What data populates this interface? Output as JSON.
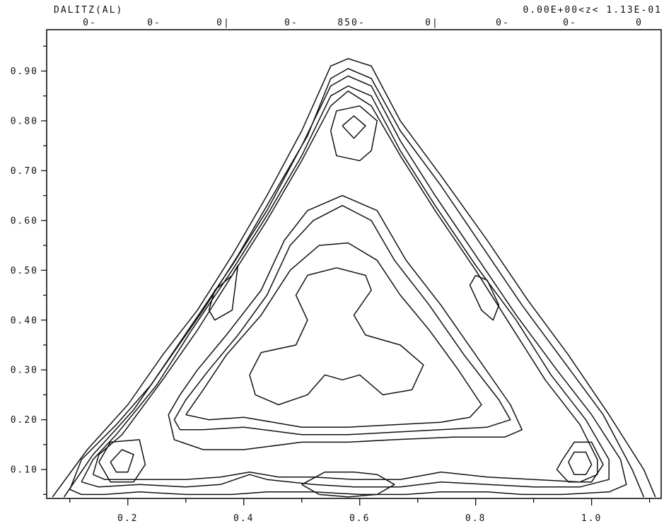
{
  "chart_data": {
    "type": "contour",
    "title": "DALITZ(AL)",
    "range_label": "0.00E+00<z< 1.13E-01",
    "top_labels": [
      "0-",
      "0-",
      "0|",
      "0-",
      "850-",
      "0|",
      "0-",
      "0-",
      "0"
    ],
    "x_ticks": [
      "0.2",
      "0.4",
      "0.6",
      "0.8",
      "1.0"
    ],
    "y_ticks": [
      "0.90",
      "0.80",
      "0.70",
      "0.60",
      "0.50",
      "0.40",
      "0.30",
      "0.20",
      "0.10"
    ],
    "xlim": [
      0.06,
      1.12
    ],
    "ylim": [
      0.042,
      0.983
    ],
    "contours": [
      {
        "level": 1,
        "points": [
          [
            0.07,
            0.045
          ],
          [
            0.13,
            0.14
          ],
          [
            0.2,
            0.23
          ],
          [
            0.26,
            0.33
          ],
          [
            0.32,
            0.42
          ],
          [
            0.38,
            0.53
          ],
          [
            0.44,
            0.65
          ],
          [
            0.5,
            0.78
          ],
          [
            0.55,
            0.91
          ],
          [
            0.58,
            0.925
          ],
          [
            0.62,
            0.91
          ],
          [
            0.67,
            0.8
          ],
          [
            0.74,
            0.69
          ],
          [
            0.82,
            0.56
          ],
          [
            0.89,
            0.44
          ],
          [
            0.96,
            0.33
          ],
          [
            1.03,
            0.21
          ],
          [
            1.09,
            0.1
          ],
          [
            1.11,
            0.045
          ]
        ]
      },
      {
        "level": 2,
        "points": [
          [
            0.09,
            0.045
          ],
          [
            0.14,
            0.13
          ],
          [
            0.21,
            0.22
          ],
          [
            0.27,
            0.32
          ],
          [
            0.33,
            0.42
          ],
          [
            0.39,
            0.53
          ],
          [
            0.45,
            0.65
          ],
          [
            0.51,
            0.77
          ],
          [
            0.55,
            0.885
          ],
          [
            0.58,
            0.905
          ],
          [
            0.62,
            0.885
          ],
          [
            0.67,
            0.78
          ],
          [
            0.74,
            0.67
          ],
          [
            0.81,
            0.55
          ],
          [
            0.88,
            0.43
          ],
          [
            0.95,
            0.32
          ],
          [
            1.02,
            0.21
          ],
          [
            1.07,
            0.1
          ],
          [
            1.09,
            0.045
          ]
        ]
      },
      {
        "level": 3,
        "points": [
          [
            0.1,
            0.06
          ],
          [
            0.12,
            0.12
          ],
          [
            0.18,
            0.19
          ],
          [
            0.24,
            0.27
          ],
          [
            0.31,
            0.39
          ],
          [
            0.38,
            0.51
          ],
          [
            0.44,
            0.62
          ],
          [
            0.5,
            0.75
          ],
          [
            0.55,
            0.87
          ],
          [
            0.58,
            0.89
          ],
          [
            0.62,
            0.87
          ],
          [
            0.67,
            0.76
          ],
          [
            0.73,
            0.65
          ],
          [
            0.8,
            0.53
          ],
          [
            0.87,
            0.41
          ],
          [
            0.94,
            0.3
          ],
          [
            1.0,
            0.21
          ],
          [
            1.05,
            0.12
          ],
          [
            1.06,
            0.07
          ],
          [
            1.03,
            0.055
          ],
          [
            0.95,
            0.05
          ],
          [
            0.88,
            0.05
          ],
          [
            0.82,
            0.055
          ],
          [
            0.74,
            0.055
          ],
          [
            0.68,
            0.05
          ],
          [
            0.6,
            0.05
          ],
          [
            0.52,
            0.055
          ],
          [
            0.44,
            0.055
          ],
          [
            0.38,
            0.05
          ],
          [
            0.3,
            0.05
          ],
          [
            0.22,
            0.055
          ],
          [
            0.16,
            0.05
          ],
          [
            0.12,
            0.05
          ],
          [
            0.1,
            0.06
          ]
        ]
      },
      {
        "level": 4,
        "points": [
          [
            0.12,
            0.075
          ],
          [
            0.14,
            0.12
          ],
          [
            0.18,
            0.17
          ],
          [
            0.25,
            0.27
          ],
          [
            0.31,
            0.38
          ],
          [
            0.38,
            0.5
          ],
          [
            0.44,
            0.61
          ],
          [
            0.5,
            0.73
          ],
          [
            0.55,
            0.85
          ],
          [
            0.58,
            0.87
          ],
          [
            0.62,
            0.85
          ],
          [
            0.67,
            0.74
          ],
          [
            0.73,
            0.63
          ],
          [
            0.8,
            0.51
          ],
          [
            0.87,
            0.4
          ],
          [
            0.93,
            0.29
          ],
          [
            0.99,
            0.2
          ],
          [
            1.03,
            0.12
          ],
          [
            1.03,
            0.08
          ],
          [
            0.98,
            0.065
          ],
          [
            0.9,
            0.065
          ],
          [
            0.82,
            0.07
          ],
          [
            0.74,
            0.075
          ],
          [
            0.67,
            0.065
          ],
          [
            0.59,
            0.065
          ],
          [
            0.52,
            0.07
          ],
          [
            0.44,
            0.08
          ],
          [
            0.41,
            0.09
          ],
          [
            0.36,
            0.07
          ],
          [
            0.3,
            0.065
          ],
          [
            0.22,
            0.07
          ],
          [
            0.15,
            0.065
          ],
          [
            0.12,
            0.075
          ]
        ]
      },
      {
        "level": 5,
        "points": [
          [
            0.14,
            0.09
          ],
          [
            0.15,
            0.13
          ],
          [
            0.19,
            0.17
          ],
          [
            0.26,
            0.28
          ],
          [
            0.32,
            0.38
          ],
          [
            0.38,
            0.49
          ],
          [
            0.44,
            0.6
          ],
          [
            0.5,
            0.72
          ],
          [
            0.55,
            0.83
          ],
          [
            0.58,
            0.86
          ],
          [
            0.62,
            0.83
          ],
          [
            0.67,
            0.73
          ],
          [
            0.73,
            0.62
          ],
          [
            0.8,
            0.5
          ],
          [
            0.86,
            0.39
          ],
          [
            0.92,
            0.28
          ],
          [
            0.98,
            0.19
          ],
          [
            1.01,
            0.12
          ],
          [
            1.01,
            0.09
          ],
          [
            0.98,
            0.075
          ],
          [
            0.9,
            0.08
          ],
          [
            0.82,
            0.085
          ],
          [
            0.74,
            0.095
          ],
          [
            0.67,
            0.08
          ],
          [
            0.59,
            0.08
          ],
          [
            0.52,
            0.085
          ],
          [
            0.46,
            0.085
          ],
          [
            0.41,
            0.095
          ],
          [
            0.36,
            0.085
          ],
          [
            0.3,
            0.08
          ],
          [
            0.22,
            0.08
          ],
          [
            0.16,
            0.08
          ],
          [
            0.14,
            0.09
          ]
        ]
      },
      {
        "level": 6,
        "points": [
          [
            0.15,
            0.115
          ],
          [
            0.17,
            0.155
          ],
          [
            0.22,
            0.16
          ],
          [
            0.23,
            0.11
          ],
          [
            0.21,
            0.075
          ],
          [
            0.17,
            0.075
          ],
          [
            0.15,
            0.115
          ]
        ]
      },
      {
        "level": 7,
        "points": [
          [
            0.17,
            0.115
          ],
          [
            0.19,
            0.14
          ],
          [
            0.21,
            0.13
          ],
          [
            0.2,
            0.095
          ],
          [
            0.18,
            0.095
          ],
          [
            0.17,
            0.115
          ]
        ]
      },
      {
        "level": 6,
        "points": [
          [
            0.95,
            0.12
          ],
          [
            0.97,
            0.155
          ],
          [
            1.0,
            0.155
          ],
          [
            1.02,
            0.11
          ],
          [
            1.0,
            0.075
          ],
          [
            0.96,
            0.075
          ],
          [
            0.94,
            0.1
          ],
          [
            0.95,
            0.12
          ]
        ]
      },
      {
        "level": 7,
        "points": [
          [
            0.96,
            0.115
          ],
          [
            0.97,
            0.135
          ],
          [
            0.99,
            0.135
          ],
          [
            1.0,
            0.11
          ],
          [
            0.99,
            0.09
          ],
          [
            0.97,
            0.09
          ],
          [
            0.96,
            0.115
          ]
        ]
      },
      {
        "level": 6,
        "points": [
          [
            0.55,
            0.78
          ],
          [
            0.56,
            0.82
          ],
          [
            0.6,
            0.83
          ],
          [
            0.63,
            0.8
          ],
          [
            0.62,
            0.74
          ],
          [
            0.6,
            0.72
          ],
          [
            0.56,
            0.73
          ],
          [
            0.55,
            0.78
          ]
        ]
      },
      {
        "level": 7,
        "points": [
          [
            0.57,
            0.79
          ],
          [
            0.59,
            0.81
          ],
          [
            0.61,
            0.79
          ],
          [
            0.59,
            0.765
          ],
          [
            0.57,
            0.79
          ]
        ]
      },
      {
        "level": 6,
        "points": [
          [
            0.34,
            0.42
          ],
          [
            0.35,
            0.46
          ],
          [
            0.38,
            0.49
          ],
          [
            0.39,
            0.51
          ],
          [
            0.38,
            0.42
          ],
          [
            0.35,
            0.4
          ],
          [
            0.34,
            0.42
          ]
        ]
      },
      {
        "level": 6,
        "points": [
          [
            0.8,
            0.49
          ],
          [
            0.82,
            0.48
          ],
          [
            0.84,
            0.43
          ],
          [
            0.83,
            0.4
          ],
          [
            0.81,
            0.42
          ],
          [
            0.79,
            0.47
          ],
          [
            0.8,
            0.49
          ]
        ]
      },
      {
        "level": 6,
        "points": [
          [
            0.5,
            0.07
          ],
          [
            0.54,
            0.095
          ],
          [
            0.59,
            0.095
          ],
          [
            0.63,
            0.09
          ],
          [
            0.66,
            0.07
          ],
          [
            0.63,
            0.05
          ],
          [
            0.58,
            0.045
          ],
          [
            0.53,
            0.05
          ],
          [
            0.5,
            0.07
          ]
        ]
      },
      {
        "level": 8,
        "points": [
          [
            0.27,
            0.21
          ],
          [
            0.29,
            0.25
          ],
          [
            0.32,
            0.3
          ],
          [
            0.37,
            0.37
          ],
          [
            0.43,
            0.46
          ],
          [
            0.47,
            0.56
          ],
          [
            0.51,
            0.62
          ],
          [
            0.57,
            0.65
          ],
          [
            0.63,
            0.62
          ],
          [
            0.68,
            0.52
          ],
          [
            0.74,
            0.43
          ],
          [
            0.8,
            0.33
          ],
          [
            0.86,
            0.23
          ],
          [
            0.88,
            0.18
          ],
          [
            0.85,
            0.165
          ],
          [
            0.76,
            0.165
          ],
          [
            0.66,
            0.16
          ],
          [
            0.58,
            0.155
          ],
          [
            0.5,
            0.155
          ],
          [
            0.4,
            0.14
          ],
          [
            0.33,
            0.14
          ],
          [
            0.28,
            0.16
          ],
          [
            0.27,
            0.21
          ]
        ]
      },
      {
        "level": 9,
        "points": [
          [
            0.28,
            0.2
          ],
          [
            0.3,
            0.24
          ],
          [
            0.34,
            0.3
          ],
          [
            0.39,
            0.37
          ],
          [
            0.44,
            0.45
          ],
          [
            0.48,
            0.55
          ],
          [
            0.52,
            0.6
          ],
          [
            0.57,
            0.63
          ],
          [
            0.62,
            0.6
          ],
          [
            0.66,
            0.52
          ],
          [
            0.72,
            0.43
          ],
          [
            0.78,
            0.33
          ],
          [
            0.84,
            0.24
          ],
          [
            0.86,
            0.2
          ],
          [
            0.82,
            0.185
          ],
          [
            0.74,
            0.18
          ],
          [
            0.66,
            0.175
          ],
          [
            0.58,
            0.17
          ],
          [
            0.5,
            0.17
          ],
          [
            0.4,
            0.185
          ],
          [
            0.33,
            0.18
          ],
          [
            0.29,
            0.18
          ],
          [
            0.28,
            0.2
          ]
        ]
      },
      {
        "level": 10,
        "points": [
          [
            0.3,
            0.21
          ],
          [
            0.33,
            0.26
          ],
          [
            0.37,
            0.33
          ],
          [
            0.43,
            0.41
          ],
          [
            0.48,
            0.5
          ],
          [
            0.53,
            0.55
          ],
          [
            0.58,
            0.555
          ],
          [
            0.63,
            0.52
          ],
          [
            0.67,
            0.45
          ],
          [
            0.72,
            0.38
          ],
          [
            0.77,
            0.3
          ],
          [
            0.81,
            0.23
          ],
          [
            0.79,
            0.205
          ],
          [
            0.74,
            0.195
          ],
          [
            0.66,
            0.19
          ],
          [
            0.58,
            0.185
          ],
          [
            0.5,
            0.185
          ],
          [
            0.4,
            0.205
          ],
          [
            0.34,
            0.2
          ],
          [
            0.3,
            0.21
          ]
        ]
      },
      {
        "level": 11,
        "points": [
          [
            0.41,
            0.29
          ],
          [
            0.43,
            0.335
          ],
          [
            0.49,
            0.35
          ],
          [
            0.51,
            0.4
          ],
          [
            0.49,
            0.45
          ],
          [
            0.51,
            0.49
          ],
          [
            0.56,
            0.505
          ],
          [
            0.61,
            0.49
          ],
          [
            0.62,
            0.46
          ],
          [
            0.59,
            0.41
          ],
          [
            0.61,
            0.37
          ],
          [
            0.67,
            0.35
          ],
          [
            0.71,
            0.31
          ],
          [
            0.69,
            0.26
          ],
          [
            0.64,
            0.25
          ],
          [
            0.6,
            0.29
          ],
          [
            0.57,
            0.28
          ],
          [
            0.54,
            0.29
          ],
          [
            0.51,
            0.25
          ],
          [
            0.46,
            0.23
          ],
          [
            0.42,
            0.25
          ],
          [
            0.41,
            0.29
          ]
        ]
      }
    ]
  }
}
